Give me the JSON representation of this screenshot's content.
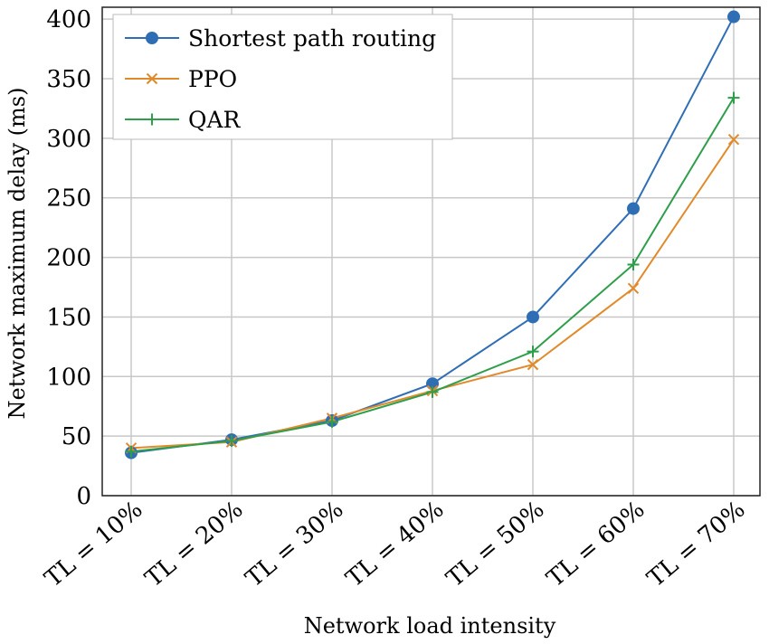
{
  "chart_data": {
    "type": "line",
    "categories": [
      "TL = 10%",
      "TL = 20%",
      "TL = 30%",
      "TL = 40%",
      "TL = 50%",
      "TL = 60%",
      "TL = 70%"
    ],
    "series": [
      {
        "name": "Shortest path routing",
        "color": "#2f6eb5",
        "marker": "circle",
        "values": [
          36,
          47,
          63,
          94,
          150,
          241,
          402
        ]
      },
      {
        "name": "PPO",
        "color": "#e08a2c",
        "marker": "x",
        "values": [
          40,
          45,
          65,
          88,
          110,
          174,
          299
        ]
      },
      {
        "name": "QAR",
        "color": "#2e9e4a",
        "marker": "plus",
        "values": [
          37,
          46,
          62,
          87,
          121,
          194,
          334
        ]
      }
    ],
    "xlabel": "Network load intensity",
    "ylabel": "Network maximum delay (ms)",
    "ylim": [
      0,
      410
    ],
    "yticks": [
      "0",
      "50",
      "100",
      "150",
      "200",
      "250",
      "300",
      "350",
      "400"
    ],
    "ytick_values": [
      0,
      50,
      100,
      150,
      200,
      250,
      300,
      350,
      400
    ],
    "grid": true,
    "legend_position": "top-left"
  }
}
